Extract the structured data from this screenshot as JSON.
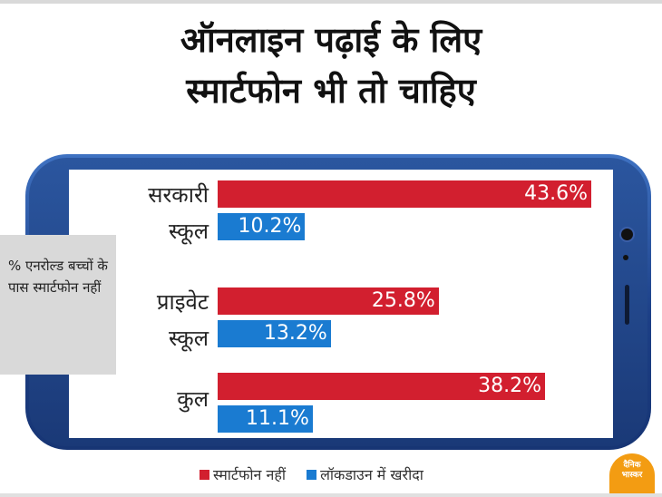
{
  "title": {
    "line1": "ऑनलाइन पढ़ाई के लिए",
    "line2": "स्मार्टफोन भी तो चाहिए"
  },
  "side_note": "% एनरोल्ड बच्चों के पास स्मार्टफोन नहीं",
  "colors": {
    "series1": "#d21f2f",
    "series2": "#1a7bd1",
    "phone": "#1c3f86"
  },
  "logo": {
    "text": "दैनिक भास्कर"
  },
  "chart_data": {
    "type": "bar",
    "orientation": "horizontal",
    "categories": [
      "सरकारी स्कूल",
      "प्राइवेट स्कूल",
      "कुल"
    ],
    "category_labels": [
      "सरकारी\nस्कूल",
      "प्राइवेट\nस्कूल",
      "कुल"
    ],
    "series": [
      {
        "name": "स्मार्टफोन नहीं",
        "values": [
          43.6,
          25.8,
          38.2
        ],
        "labels": [
          "43.6%",
          "25.8%",
          "38.2%"
        ],
        "color": "#d21f2f"
      },
      {
        "name": "लॉकडाउन में खरीदा",
        "values": [
          10.2,
          13.2,
          11.1
        ],
        "labels": [
          "10.2%",
          "13.2%",
          "11.1%"
        ],
        "color": "#1a7bd1"
      }
    ],
    "xlim": [
      0,
      45
    ],
    "grid": false,
    "legend_position": "bottom"
  }
}
